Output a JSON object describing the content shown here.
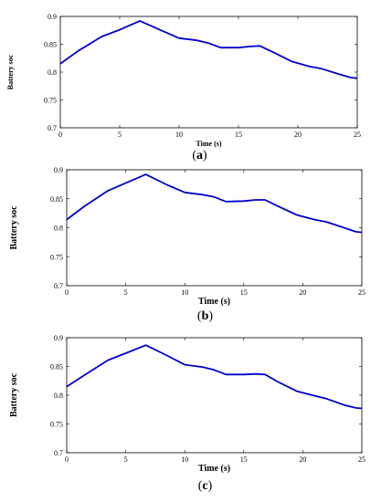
{
  "chart_data": [
    {
      "type": "line",
      "panel_label": "a",
      "xlabel": "Time (s)",
      "ylabel": "Battery soc",
      "xlim": [
        0,
        25
      ],
      "ylim": [
        0.7,
        0.9
      ],
      "xticks": [
        "0",
        "5",
        "10",
        "15",
        "20",
        "25"
      ],
      "yticks": [
        "0.7",
        "0.75",
        "0.8",
        "0.85",
        "0.9"
      ],
      "grid": false,
      "series": [
        {
          "color": "#0000cc",
          "x": [
            0,
            1.5,
            3.5,
            5.0,
            6.7,
            8.5,
            10.0,
            11.5,
            12.5,
            13.5,
            15.0,
            16.0,
            16.8,
            18.0,
            19.5,
            21.0,
            22.0,
            23.5,
            24.5,
            25.0
          ],
          "y": [
            0.815,
            0.838,
            0.864,
            0.876,
            0.892,
            0.875,
            0.861,
            0.857,
            0.852,
            0.844,
            0.844,
            0.846,
            0.847,
            0.835,
            0.819,
            0.81,
            0.806,
            0.796,
            0.79,
            0.789
          ]
        }
      ]
    },
    {
      "type": "line",
      "panel_label": "b",
      "xlabel": "Time (s)",
      "ylabel": "Battery soc",
      "xlim": [
        0,
        25
      ],
      "ylim": [
        0.7,
        0.9
      ],
      "xticks": [
        "0",
        "5",
        "10",
        "15",
        "20",
        "25"
      ],
      "yticks": [
        "0.7",
        "0.75",
        "0.8",
        "0.85",
        "0.9"
      ],
      "grid": false,
      "series": [
        {
          "color": "#0000cc",
          "x": [
            0,
            1.5,
            3.5,
            5.0,
            6.7,
            8.5,
            10.0,
            11.5,
            12.5,
            13.5,
            15.0,
            16.0,
            16.8,
            18.0,
            19.5,
            21.0,
            22.0,
            23.5,
            24.5,
            25.0
          ],
          "y": [
            0.814,
            0.837,
            0.864,
            0.877,
            0.892,
            0.874,
            0.861,
            0.857,
            0.853,
            0.845,
            0.846,
            0.848,
            0.848,
            0.836,
            0.822,
            0.814,
            0.81,
            0.8,
            0.793,
            0.792
          ]
        }
      ]
    },
    {
      "type": "line",
      "panel_label": "c",
      "xlabel": "Time (s)",
      "ylabel": "Battery soc",
      "xlim": [
        0,
        25
      ],
      "ylim": [
        0.7,
        0.9
      ],
      "xticks": [
        "0",
        "5",
        "10",
        "15",
        "20",
        "25"
      ],
      "yticks": [
        "0.7",
        "0.75",
        "0.8",
        "0.85",
        "0.9"
      ],
      "grid": false,
      "series": [
        {
          "color": "#0000cc",
          "x": [
            0,
            1.5,
            3.5,
            5.0,
            6.7,
            8.5,
            10.0,
            11.5,
            12.5,
            13.5,
            15.0,
            16.0,
            16.8,
            18.0,
            19.5,
            21.0,
            22.0,
            23.5,
            24.5,
            25.0
          ],
          "y": [
            0.815,
            0.835,
            0.861,
            0.873,
            0.887,
            0.869,
            0.853,
            0.849,
            0.844,
            0.836,
            0.836,
            0.837,
            0.836,
            0.822,
            0.807,
            0.799,
            0.794,
            0.783,
            0.778,
            0.777
          ]
        }
      ]
    }
  ]
}
